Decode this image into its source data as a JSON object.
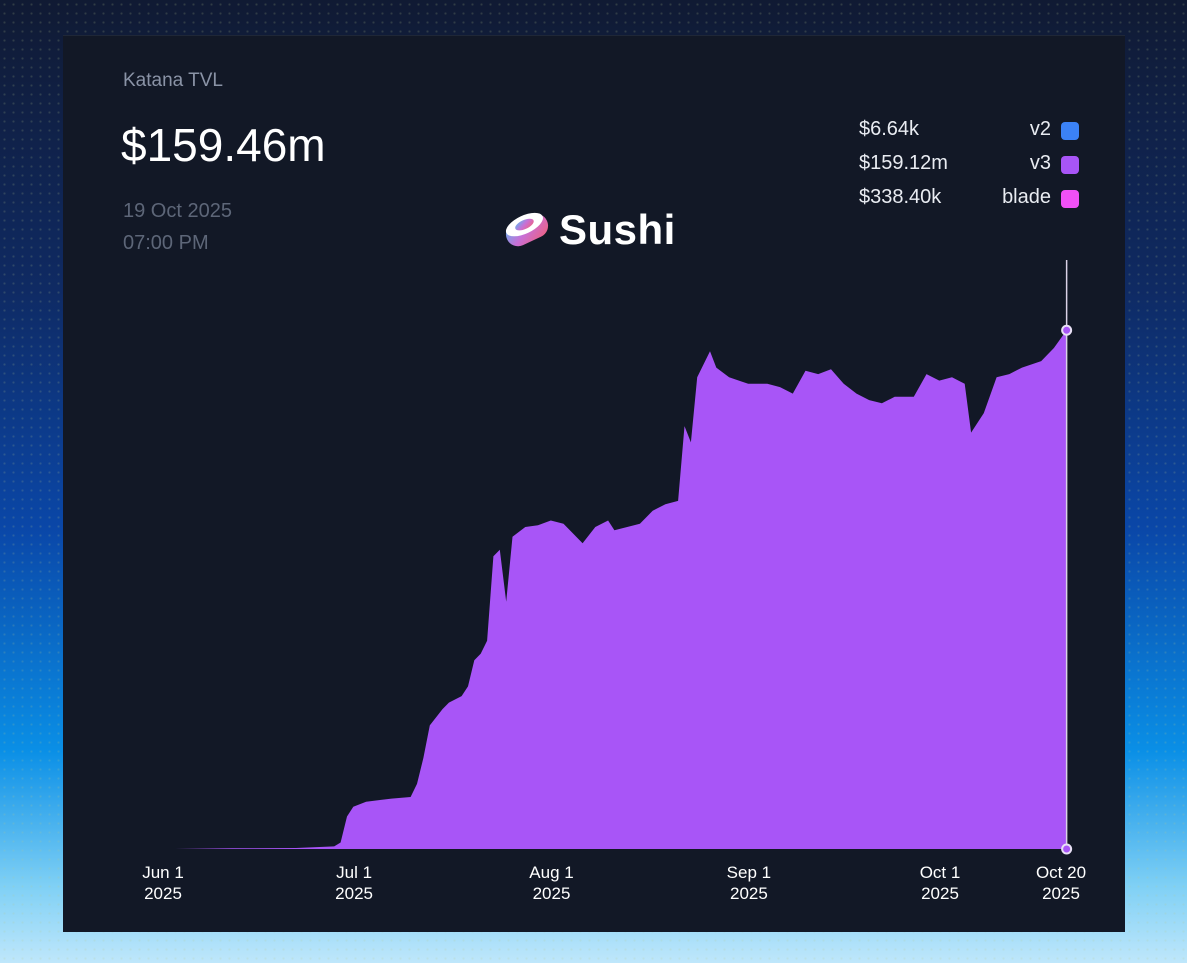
{
  "header": {
    "title": "Katana TVL",
    "total": "$159.46m",
    "date": "19 Oct 2025",
    "time": "07:00 PM"
  },
  "brand": {
    "name": "Sushi"
  },
  "legend": [
    {
      "value": "$6.64k",
      "name": "v2",
      "color": "#3b82f6"
    },
    {
      "value": "$159.12m",
      "name": "v3",
      "color": "#a855f7"
    },
    {
      "value": "$338.40k",
      "name": "blade",
      "color": "#f050f5"
    }
  ],
  "chart_data": {
    "type": "area",
    "title": "Katana TVL",
    "xlabel": "",
    "ylabel": "",
    "x_ticks": [
      {
        "date": "2025-06-01",
        "line1": "Jun 1",
        "line2": "2025"
      },
      {
        "date": "2025-07-01",
        "line1": "Jul 1",
        "line2": "2025"
      },
      {
        "date": "2025-08-01",
        "line1": "Aug 1",
        "line2": "2025"
      },
      {
        "date": "2025-09-01",
        "line1": "Sep 1",
        "line2": "2025"
      },
      {
        "date": "2025-10-01",
        "line1": "Oct 1",
        "line2": "2025"
      },
      {
        "date": "2025-10-20",
        "line1": "Oct 20",
        "line2": "2025"
      }
    ],
    "xlim": [
      "2025-06-01",
      "2025-10-20"
    ],
    "ylim": [
      0,
      170
    ],
    "y_unit": "USD millions",
    "grid": false,
    "fill_color": "#a855f7",
    "hover": {
      "date": "2025-10-19",
      "value": 159.46
    },
    "series": [
      {
        "name": "TVL",
        "points": [
          [
            "2025-06-01",
            0.0
          ],
          [
            "2025-06-10",
            0.2
          ],
          [
            "2025-06-20",
            0.3
          ],
          [
            "2025-06-26",
            0.8
          ],
          [
            "2025-06-27",
            2.0
          ],
          [
            "2025-06-28",
            10.0
          ],
          [
            "2025-06-29",
            13.0
          ],
          [
            "2025-07-01",
            14.5
          ],
          [
            "2025-07-05",
            15.5
          ],
          [
            "2025-07-08",
            16.0
          ],
          [
            "2025-07-09",
            20.0
          ],
          [
            "2025-07-10",
            28.0
          ],
          [
            "2025-07-11",
            38.0
          ],
          [
            "2025-07-13",
            43.0
          ],
          [
            "2025-07-14",
            45.0
          ],
          [
            "2025-07-16",
            47.0
          ],
          [
            "2025-07-17",
            50.0
          ],
          [
            "2025-07-18",
            58.0
          ],
          [
            "2025-07-19",
            60.0
          ],
          [
            "2025-07-20",
            64.0
          ],
          [
            "2025-07-21",
            90.0
          ],
          [
            "2025-07-22",
            92.0
          ],
          [
            "2025-07-23",
            76.0
          ],
          [
            "2025-07-24",
            96.0
          ],
          [
            "2025-07-26",
            99.0
          ],
          [
            "2025-07-28",
            99.5
          ],
          [
            "2025-07-30",
            101.0
          ],
          [
            "2025-08-01",
            100.0
          ],
          [
            "2025-08-04",
            94.0
          ],
          [
            "2025-08-06",
            99.0
          ],
          [
            "2025-08-08",
            101.0
          ],
          [
            "2025-08-09",
            98.0
          ],
          [
            "2025-08-11",
            99.0
          ],
          [
            "2025-08-13",
            100.0
          ],
          [
            "2025-08-15",
            104.0
          ],
          [
            "2025-08-17",
            106.0
          ],
          [
            "2025-08-19",
            107.0
          ],
          [
            "2025-08-20",
            130.0
          ],
          [
            "2025-08-21",
            125.0
          ],
          [
            "2025-08-22",
            145.0
          ],
          [
            "2025-08-24",
            153.0
          ],
          [
            "2025-08-25",
            148.0
          ],
          [
            "2025-08-27",
            145.0
          ],
          [
            "2025-08-30",
            143.0
          ],
          [
            "2025-09-02",
            143.0
          ],
          [
            "2025-09-04",
            142.0
          ],
          [
            "2025-09-06",
            140.0
          ],
          [
            "2025-09-08",
            147.0
          ],
          [
            "2025-09-10",
            146.0
          ],
          [
            "2025-09-12",
            147.5
          ],
          [
            "2025-09-14",
            143.0
          ],
          [
            "2025-09-16",
            140.0
          ],
          [
            "2025-09-18",
            138.0
          ],
          [
            "2025-09-20",
            137.0
          ],
          [
            "2025-09-22",
            139.0
          ],
          [
            "2025-09-25",
            139.0
          ],
          [
            "2025-09-27",
            146.0
          ],
          [
            "2025-09-29",
            144.0
          ],
          [
            "2025-10-01",
            145.0
          ],
          [
            "2025-10-03",
            143.0
          ],
          [
            "2025-10-04",
            128.0
          ],
          [
            "2025-10-06",
            134.0
          ],
          [
            "2025-10-08",
            145.0
          ],
          [
            "2025-10-10",
            146.0
          ],
          [
            "2025-10-12",
            148.0
          ],
          [
            "2025-10-15",
            150.0
          ],
          [
            "2025-10-17",
            154.0
          ],
          [
            "2025-10-19",
            159.46
          ]
        ]
      }
    ]
  }
}
